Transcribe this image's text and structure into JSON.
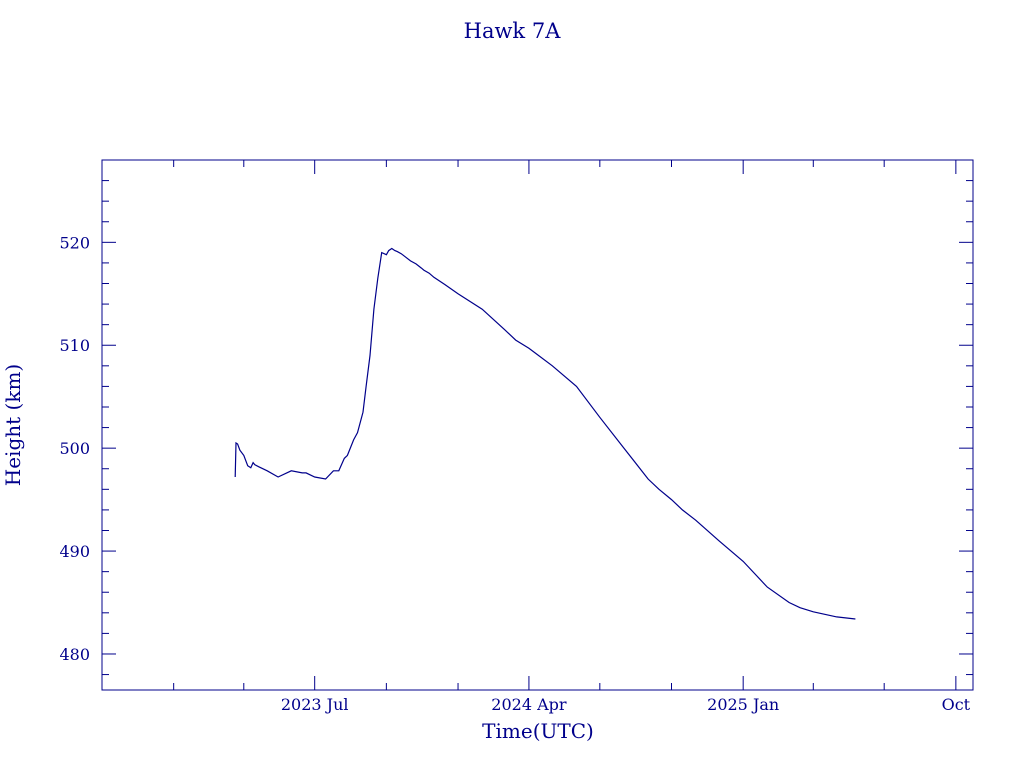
{
  "chart_data": {
    "type": "line",
    "title": "Hawk 7A",
    "xlabel": "Time(UTC)",
    "ylabel": "Height (km)",
    "color": "#00008b",
    "grid": false,
    "x_range": [
      "2022-10-01",
      "2025-10-23"
    ],
    "ylim": [
      476.5,
      528
    ],
    "y_ticks": [
      480,
      490,
      500,
      510,
      520
    ],
    "x_ticks": [
      {
        "date": "2023-07-01",
        "label": "2023 Jul"
      },
      {
        "date": "2024-04-01",
        "label": "2024 Apr"
      },
      {
        "date": "2025-01-01",
        "label": "2025 Jan"
      },
      {
        "date": "2025-10-01",
        "label": "Oct"
      }
    ],
    "series": [
      {
        "x": [
          "2023-03-21",
          "2023-03-22",
          "2023-03-24",
          "2023-03-27",
          "2023-04-01",
          "2023-04-06",
          "2023-04-10",
          "2023-04-13",
          "2023-04-15",
          "2023-04-20",
          "2023-05-01",
          "2023-05-15",
          "2023-06-01",
          "2023-06-15",
          "2023-06-20",
          "2023-07-01",
          "2023-07-15",
          "2023-07-25",
          "2023-08-01",
          "2023-08-08",
          "2023-08-12",
          "2023-08-20",
          "2023-08-25",
          "2023-09-01",
          "2023-09-05",
          "2023-09-10",
          "2023-09-15",
          "2023-09-20",
          "2023-09-25",
          "2023-10-01",
          "2023-10-04",
          "2023-10-08",
          "2023-10-12",
          "2023-10-15",
          "2023-10-20",
          "2023-10-25",
          "2023-11-01",
          "2023-11-08",
          "2023-11-15",
          "2023-11-18",
          "2023-11-25",
          "2023-12-01",
          "2023-12-15",
          "2024-01-01",
          "2024-02-01",
          "2024-03-01",
          "2024-03-15",
          "2024-04-01",
          "2024-04-10",
          "2024-05-01",
          "2024-06-01",
          "2024-07-01",
          "2024-08-01",
          "2024-09-01",
          "2024-09-15",
          "2024-10-01",
          "2024-10-15",
          "2024-11-01",
          "2024-12-01",
          "2025-01-01",
          "2025-02-01",
          "2025-03-01",
          "2025-03-15",
          "2025-04-01",
          "2025-05-01",
          "2025-05-25"
        ],
        "y": [
          497.2,
          500.5,
          500.4,
          499.8,
          499.3,
          498.3,
          498.1,
          498.6,
          498.4,
          498.2,
          497.8,
          497.2,
          497.8,
          497.6,
          497.6,
          497.2,
          497.0,
          497.8,
          497.8,
          499.0,
          499.3,
          500.8,
          501.5,
          503.5,
          506.0,
          509.0,
          513.5,
          516.5,
          519.0,
          518.8,
          519.2,
          519.4,
          519.2,
          519.1,
          518.9,
          518.6,
          518.2,
          517.9,
          517.5,
          517.3,
          517.0,
          516.6,
          515.9,
          515.0,
          513.5,
          511.5,
          510.5,
          509.7,
          509.2,
          508.0,
          506.0,
          503.0,
          500.0,
          497.0,
          496.0,
          495.0,
          494.0,
          493.0,
          491.0,
          489.0,
          486.5,
          485.0,
          484.5,
          484.1,
          483.6,
          483.4
        ]
      }
    ]
  }
}
